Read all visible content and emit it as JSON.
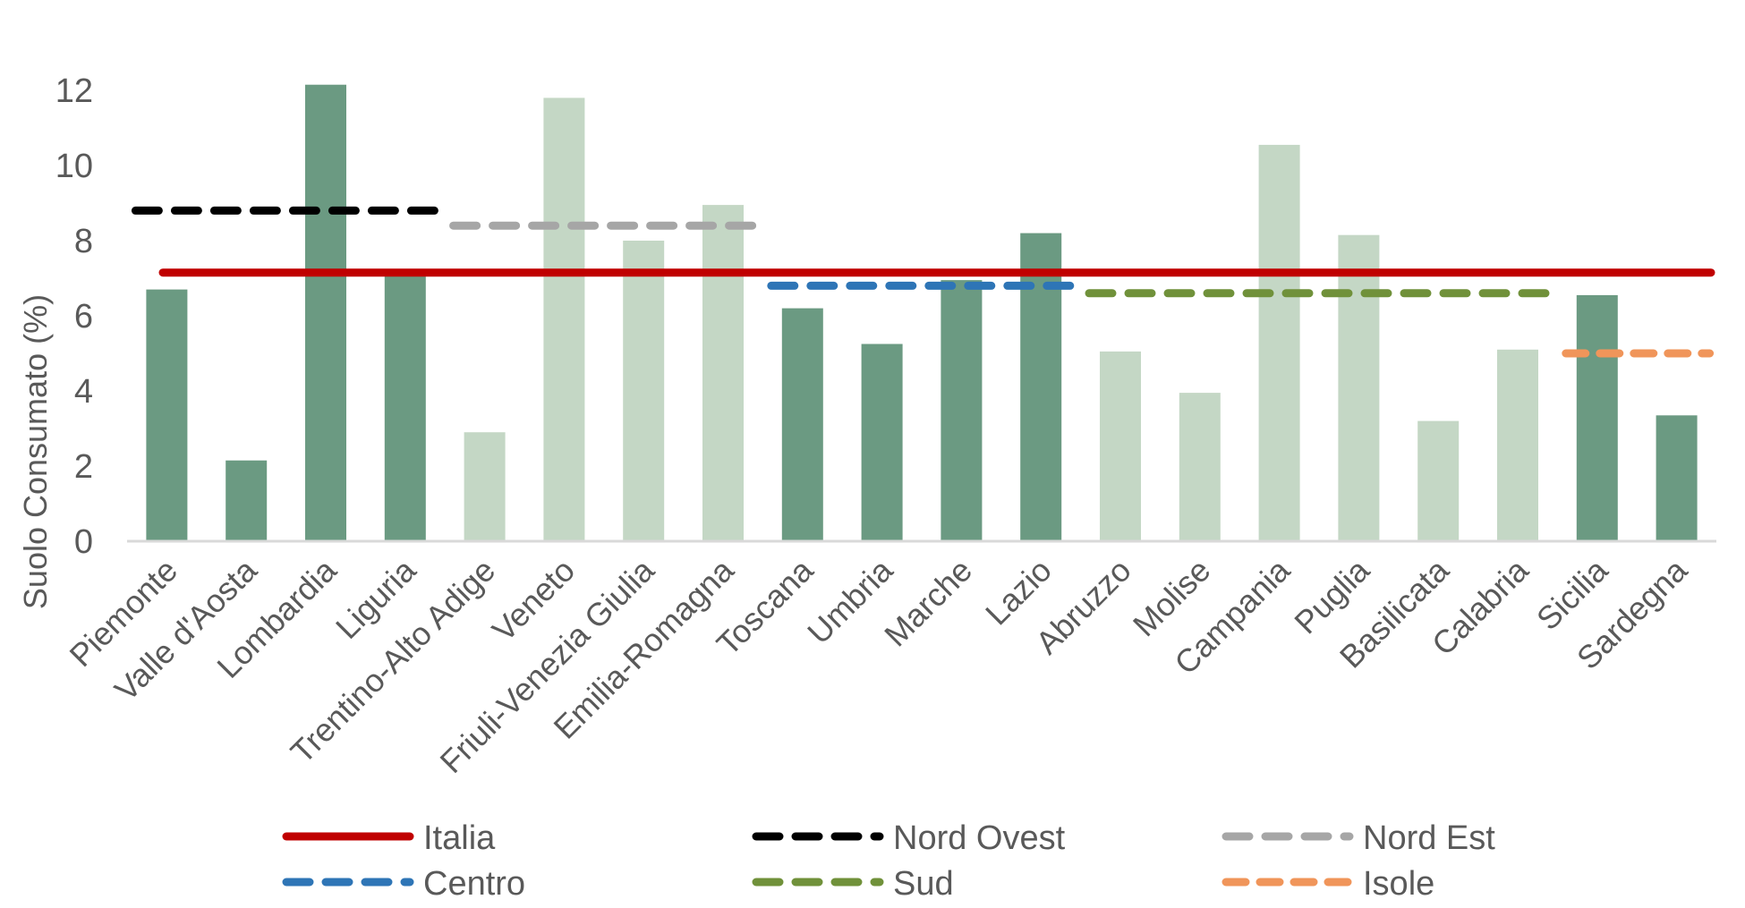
{
  "chart_data": {
    "type": "bar",
    "title": "",
    "xlabel": "",
    "ylabel": "Suolo Consumato (%)",
    "ylim": [
      0,
      12
    ],
    "yticks": [
      0,
      2,
      4,
      6,
      8,
      10,
      12
    ],
    "grid": false,
    "legend_position": "bottom",
    "categories": [
      "Piemonte",
      "Valle d'Aosta",
      "Lombardia",
      "Liguria",
      "Trentino-Alto Adige",
      "Veneto",
      "Friuli-Venezia Giulia",
      "Emilia-Romagna",
      "Toscana",
      "Umbria",
      "Marche",
      "Lazio",
      "Abruzzo",
      "Molise",
      "Campania",
      "Puglia",
      "Basilicata",
      "Calabria",
      "Sicilia",
      "Sardegna"
    ],
    "values": [
      6.7,
      2.15,
      12.15,
      7.1,
      2.9,
      11.8,
      8.0,
      8.95,
      6.2,
      5.25,
      6.95,
      8.2,
      5.05,
      3.95,
      10.55,
      8.15,
      3.2,
      5.1,
      6.55,
      3.35
    ],
    "bar_colors": [
      "#6b9a82",
      "#6b9a82",
      "#6b9a82",
      "#6b9a82",
      "#c4d7c5",
      "#c4d7c5",
      "#c4d7c5",
      "#c4d7c5",
      "#6b9a82",
      "#6b9a82",
      "#6b9a82",
      "#6b9a82",
      "#c4d7c5",
      "#c4d7c5",
      "#c4d7c5",
      "#c4d7c5",
      "#c4d7c5",
      "#c4d7c5",
      "#6b9a82",
      "#6b9a82"
    ],
    "reference_lines": [
      {
        "name": "Italia",
        "value": 7.15,
        "from_index": 0,
        "to_index": 19,
        "color": "#c00000",
        "style": "solid"
      },
      {
        "name": "Nord Ovest",
        "value": 8.8,
        "from_index": 0,
        "to_index": 3,
        "color": "#000000",
        "style": "dashed"
      },
      {
        "name": "Nord Est",
        "value": 8.4,
        "from_index": 4,
        "to_index": 7,
        "color": "#a6a6a6",
        "style": "dashed"
      },
      {
        "name": "Centro",
        "value": 6.8,
        "from_index": 8,
        "to_index": 11,
        "color": "#2e75b6",
        "style": "dashed"
      },
      {
        "name": "Sud",
        "value": 6.6,
        "from_index": 12,
        "to_index": 17,
        "color": "#70913a",
        "style": "dashed"
      },
      {
        "name": "Isole",
        "value": 5.0,
        "from_index": 18,
        "to_index": 19,
        "color": "#f0955a",
        "style": "dashed"
      }
    ],
    "legend": {
      "rows": [
        [
          "Italia",
          "Nord Ovest",
          "Nord Est"
        ],
        [
          "Centro",
          "Sud",
          "Isole"
        ]
      ]
    }
  }
}
